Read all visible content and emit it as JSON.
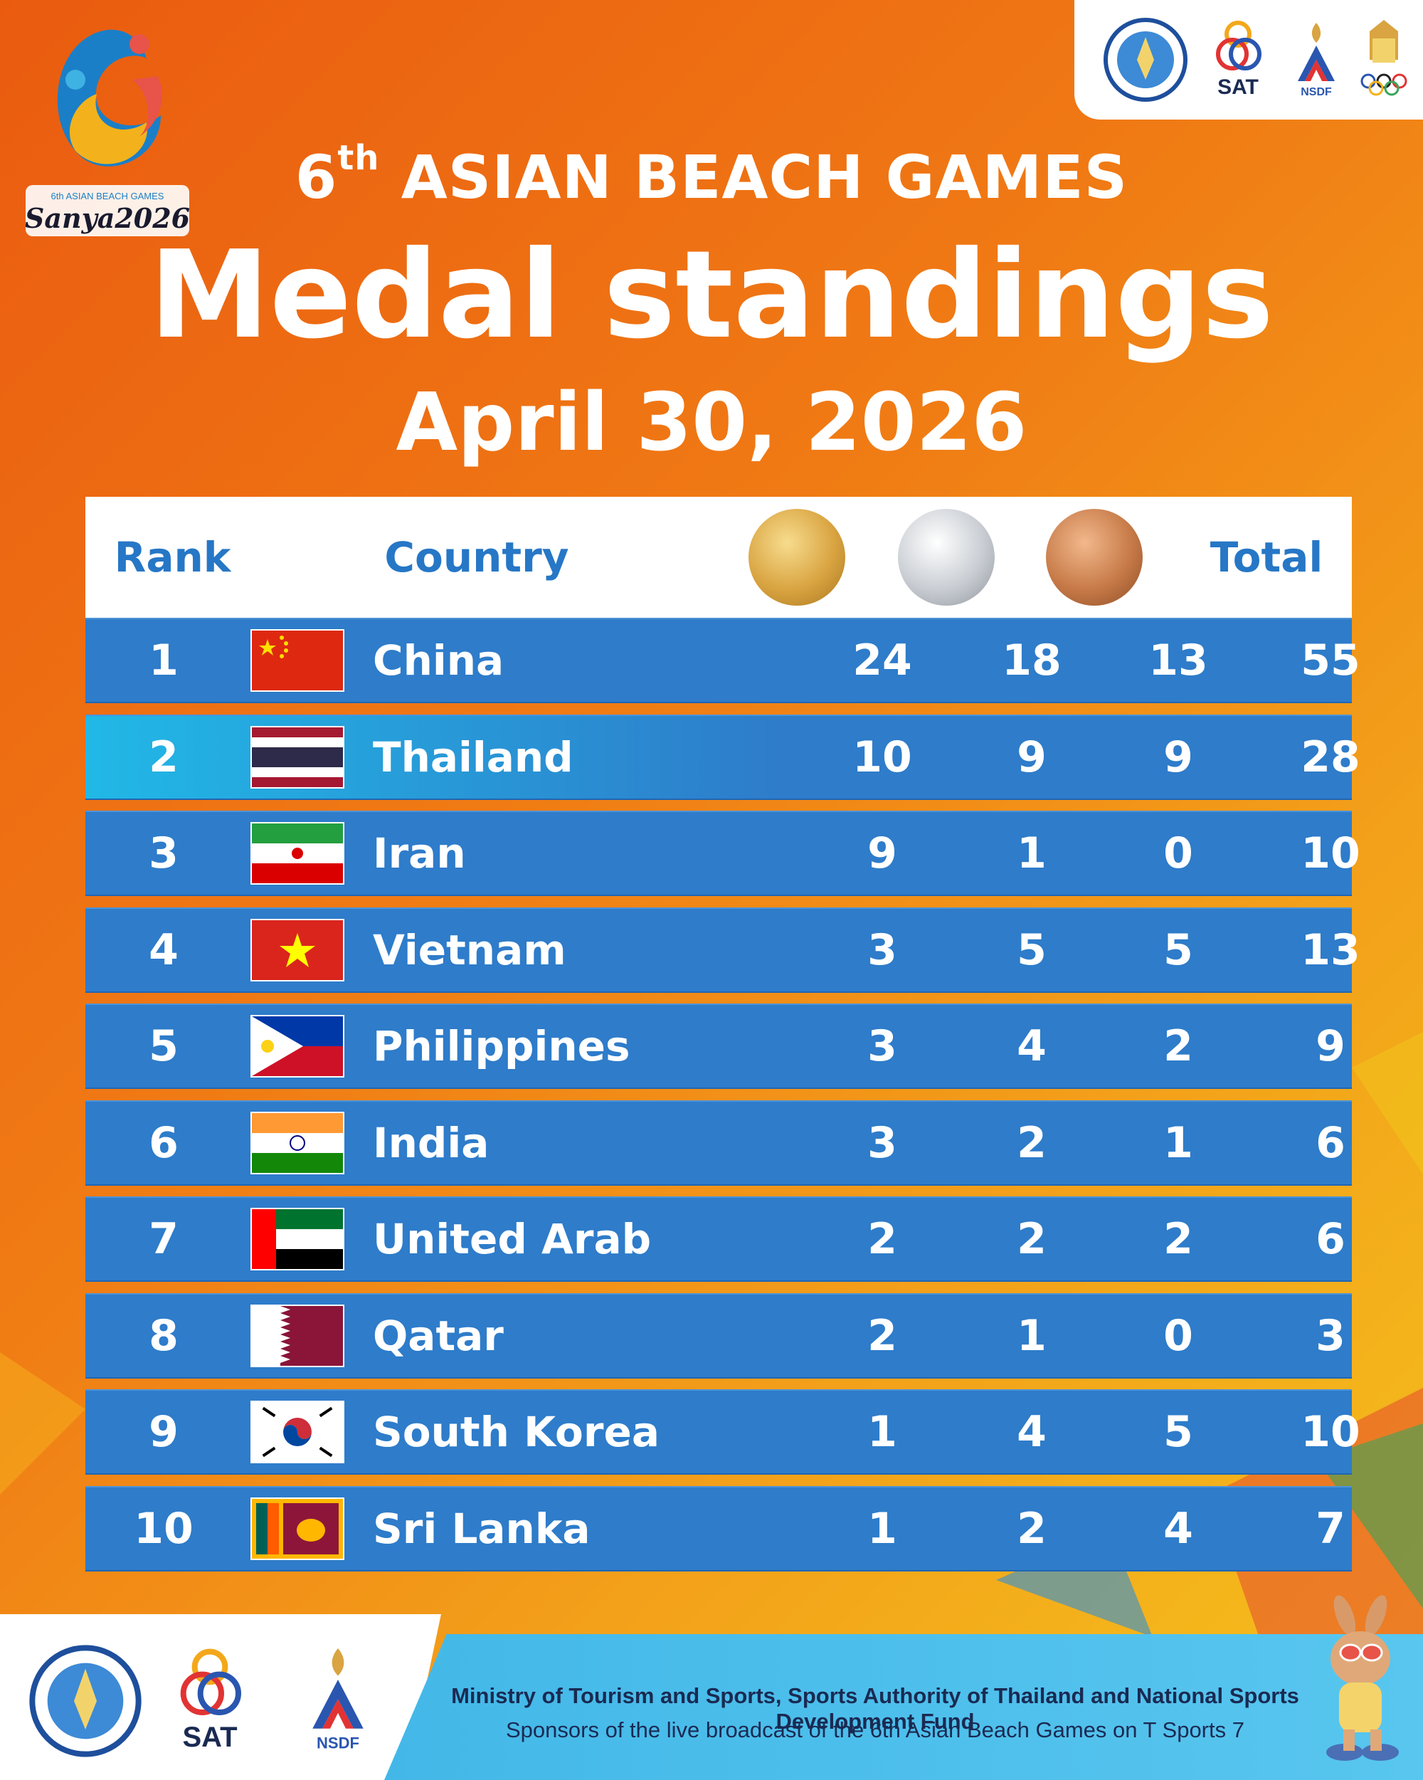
{
  "header": {
    "logo_text": "Sanya2026",
    "logo_subtext": "6th ASIAN BEACH GAMES",
    "title_number": "6",
    "title_suffix": "th",
    "title_rest": " ASIAN BEACH GAMES",
    "heading": "Medal standings",
    "date": "April 30, 2026"
  },
  "partner_logos": [
    "ministry-seal-icon",
    "sat-logo-icon",
    "nsdf-logo-icon",
    "olympic-committee-thailand-icon"
  ],
  "sat_label": "SAT",
  "nsdf_label": "NSDF",
  "table": {
    "columns": {
      "rank": "Rank",
      "country": "Country",
      "gold": "gold-medal-icon",
      "silver": "silver-medal-icon",
      "bronze": "bronze-medal-icon",
      "total": "Total"
    },
    "medal_colors": {
      "gold": "#d9a441",
      "silver": "#c9cdd3",
      "bronze": "#c77a48"
    },
    "highlight_color": "#21b8e6",
    "row_color": "#2e7cca",
    "rows": [
      {
        "rank": "1",
        "country": "China",
        "flag": "china-flag-icon",
        "gold": "24",
        "silver": "18",
        "bronze": "13",
        "total": "55",
        "highlight": false
      },
      {
        "rank": "2",
        "country": "Thailand",
        "flag": "thailand-flag-icon",
        "gold": "10",
        "silver": "9",
        "bronze": "9",
        "total": "28",
        "highlight": true
      },
      {
        "rank": "3",
        "country": "Iran",
        "flag": "iran-flag-icon",
        "gold": "9",
        "silver": "1",
        "bronze": "0",
        "total": "10",
        "highlight": false
      },
      {
        "rank": "4",
        "country": "Vietnam",
        "flag": "vietnam-flag-icon",
        "gold": "3",
        "silver": "5",
        "bronze": "5",
        "total": "13",
        "highlight": false
      },
      {
        "rank": "5",
        "country": "Philippines",
        "flag": "philippines-flag-icon",
        "gold": "3",
        "silver": "4",
        "bronze": "2",
        "total": "9",
        "highlight": false
      },
      {
        "rank": "6",
        "country": "India",
        "flag": "india-flag-icon",
        "gold": "3",
        "silver": "2",
        "bronze": "1",
        "total": "6",
        "highlight": false
      },
      {
        "rank": "7",
        "country": "United Arab Emirates",
        "flag": "uae-flag-icon",
        "gold": "2",
        "silver": "2",
        "bronze": "2",
        "total": "6",
        "highlight": false
      },
      {
        "rank": "8",
        "country": "Qatar",
        "flag": "qatar-flag-icon",
        "gold": "2",
        "silver": "1",
        "bronze": "0",
        "total": "3",
        "highlight": false
      },
      {
        "rank": "9",
        "country": "South Korea",
        "flag": "south-korea-flag-icon",
        "gold": "1",
        "silver": "4",
        "bronze": "5",
        "total": "10",
        "highlight": false
      },
      {
        "rank": "10",
        "country": "Sri Lanka",
        "flag": "sri-lanka-flag-icon",
        "gold": "1",
        "silver": "2",
        "bronze": "4",
        "total": "7",
        "highlight": false
      }
    ]
  },
  "footer": {
    "line1": "Ministry of Tourism and Sports, Sports Authority of Thailand and National Sports Development Fund",
    "line2": "Sponsors of the live broadcast of the 6th Asian Beach Games on T Sports 7",
    "logos": [
      "ministry-seal-icon",
      "sat-logo-icon",
      "nsdf-logo-icon"
    ],
    "mascot": "kangaroo-mascot-icon"
  }
}
